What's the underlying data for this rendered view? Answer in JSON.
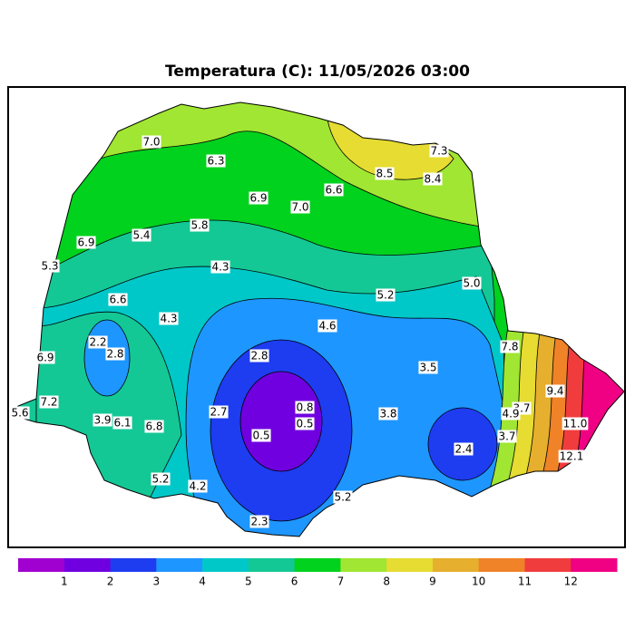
{
  "title": "Temperatura (C): 11/05/2026 03:00",
  "labels": [
    "7.0",
    "6.3",
    "8.5",
    "7.3",
    "8.4",
    "6.6",
    "6.9",
    "7.0",
    "5.8",
    "6.9",
    "5.4",
    "5.3",
    "4.3",
    "5.2",
    "5.0",
    "6.6",
    "4.3",
    "4.6",
    "2.2",
    "2.8",
    "6.9",
    "7.8",
    "2.8",
    "3.5",
    "0.8",
    "0.5",
    "2.7",
    "0.5",
    "3.8",
    "9.4",
    "3.7",
    "4.9",
    "7.2",
    "5.6",
    "3.9",
    "6.1",
    "6.8",
    "11.0",
    "3.7",
    "2.4",
    "12.1",
    "5.2",
    "4.2",
    "5.2",
    "2.3"
  ],
  "colorbar": {
    "ticks": [
      1,
      2,
      3,
      4,
      5,
      6,
      7,
      8,
      9,
      10,
      11,
      12
    ],
    "colors": [
      "#a000d0",
      "#7000e0",
      "#1e3cf0",
      "#1e96ff",
      "#00c8c8",
      "#14c896",
      "#00d21e",
      "#a0e632",
      "#e6dc32",
      "#e6af2d",
      "#f08228",
      "#f03c3c",
      "#f00082"
    ]
  }
}
